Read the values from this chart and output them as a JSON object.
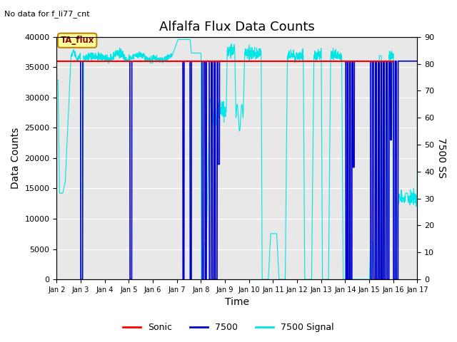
{
  "title": "Alfalfa Flux Data Counts",
  "subtitle": "No data for f_li77_cnt",
  "xlabel": "Time",
  "ylabel_left": "Data Counts",
  "ylabel_right": "7500 SS",
  "ylim_left": [
    0,
    40000
  ],
  "ylim_right": [
    0,
    90
  ],
  "yticks_left": [
    0,
    5000,
    10000,
    15000,
    20000,
    25000,
    30000,
    35000,
    40000
  ],
  "yticks_right": [
    0,
    10,
    20,
    30,
    40,
    50,
    60,
    70,
    80,
    90
  ],
  "xtick_labels": [
    "Jan 2",
    "Jan 3",
    "Jan 4",
    "Jan 5",
    "Jan 6",
    "Jan 7",
    "Jan 8",
    "Jan 9",
    "Jan 10",
    "Jan 11",
    "Jan 12",
    "Jan 13",
    "Jan 14",
    "Jan 15",
    "Jan 16",
    "Jan 17"
  ],
  "sonic_color": "#ff0000",
  "blue_color": "#0000cc",
  "cyan_color": "#00e5e5",
  "bg_color": "#e8e8e8",
  "legend_label_sonic": "Sonic",
  "legend_label_7500": "7500",
  "legend_label_signal": "7500 Signal",
  "ta_flux_box_color": "#ffff99",
  "ta_flux_text": "TA_flux",
  "title_fontsize": 13,
  "axis_fontsize": 10
}
